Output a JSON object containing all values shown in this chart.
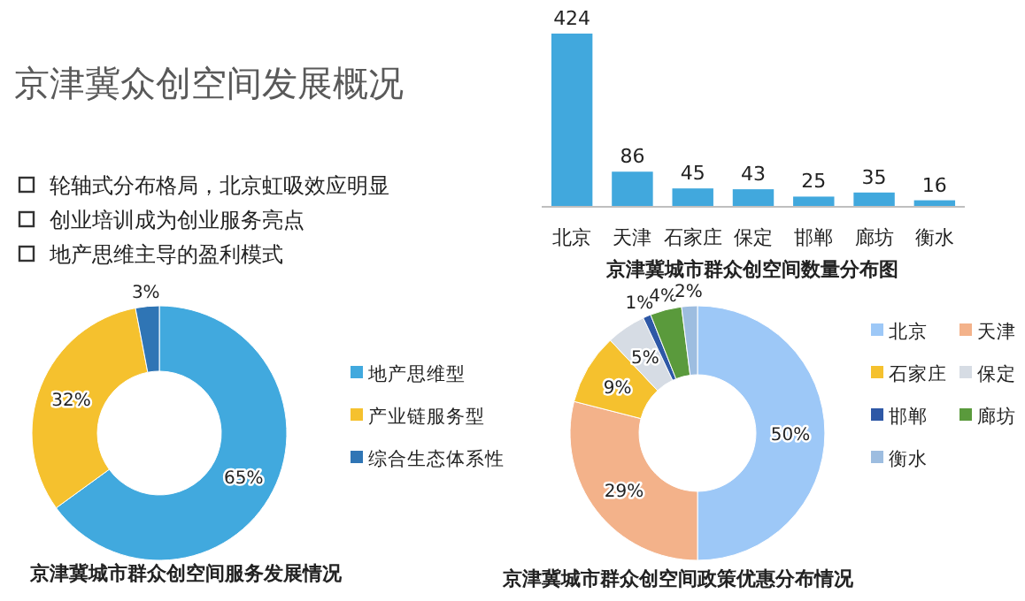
{
  "chart_data": [
    {
      "type": "other",
      "title": "京津冀众创空间发展概况",
      "annotations": [
        "轮轴式分布格局，北京虹吸效应明显",
        "创业培训成为创业服务亮点",
        "地产思维主导的盈利模式"
      ]
    },
    {
      "type": "bar",
      "title": "京津冀城市群众创空间数量分布图",
      "categories": [
        "北京",
        "天津",
        "石家庄",
        "保定",
        "邯郸",
        "廊坊",
        "衡水"
      ],
      "values": [
        424,
        86,
        45,
        43,
        25,
        35,
        16
      ],
      "color": "#41a8dd",
      "data_labels": true
    },
    {
      "type": "donut",
      "title": "京津冀城市群众创空间服务发展情况",
      "categories": [
        "地产思维型",
        "产业链服务型",
        "综合生态体系性"
      ],
      "values": [
        65,
        32,
        3
      ],
      "value_labels": [
        "65%",
        "32%",
        "3%"
      ],
      "colors": [
        "#41a9de",
        "#f5c12e",
        "#2f75b5"
      ],
      "legend": "right"
    },
    {
      "type": "donut",
      "title": "京津冀城市群众创空间政策优惠分布情况",
      "categories": [
        "北京",
        "天津",
        "石家庄",
        "保定",
        "邯郸",
        "廊坊",
        "衡水"
      ],
      "values": [
        50,
        29,
        9,
        5,
        1,
        4,
        2
      ],
      "value_labels": [
        "50%",
        "29%",
        "9%",
        "5%",
        "1%",
        "4%",
        "2%"
      ],
      "colors": [
        "#9dc8f7",
        "#f3b28a",
        "#f5c12e",
        "#d6dce4",
        "#2e58a6",
        "#5a9a3c",
        "#9dbde0"
      ],
      "legend": "right"
    }
  ]
}
